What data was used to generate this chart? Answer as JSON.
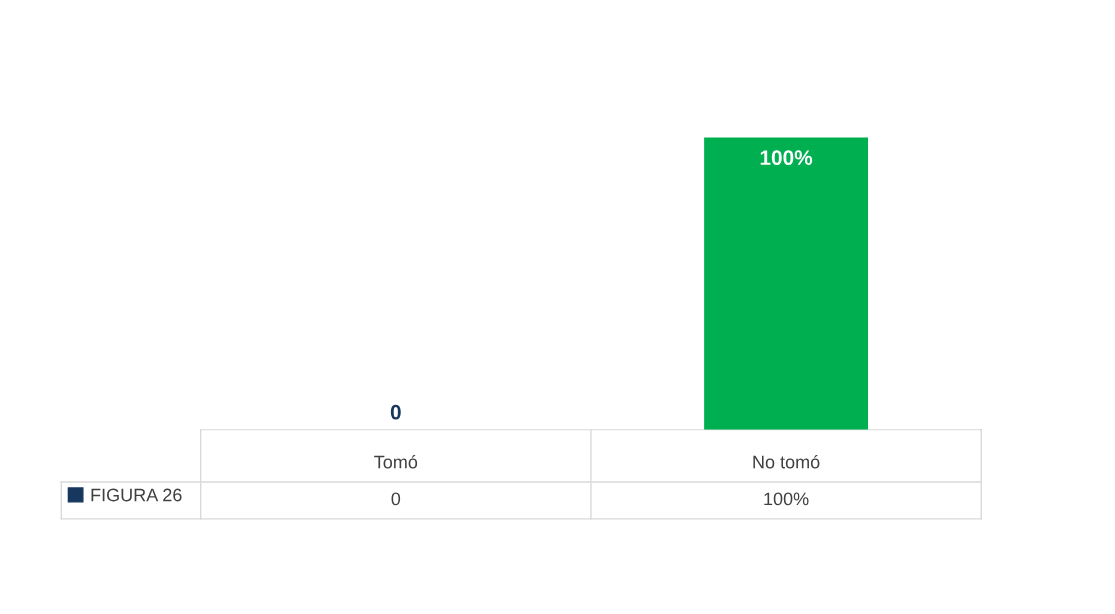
{
  "chart_data": {
    "type": "bar",
    "categories": [
      "Tomó",
      "No tomó"
    ],
    "series": [
      {
        "name": "FIGURA 26",
        "colors": [
          "#17375e",
          "#00b050"
        ],
        "values": [
          0,
          100
        ],
        "value_labels": [
          "0",
          "100%"
        ]
      }
    ],
    "data_labels": true,
    "legend": "bottom left"
  }
}
